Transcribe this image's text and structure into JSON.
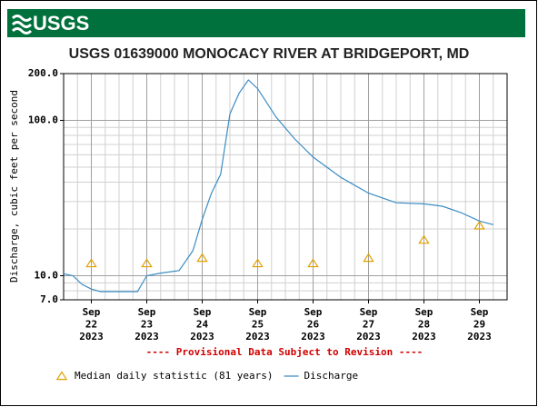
{
  "logo": "USGS",
  "chart_data": {
    "type": "line",
    "title": "USGS 01639000 MONOCACY RIVER AT BRIDGEPORT, MD",
    "y_label": "Discharge, cubic feet per second",
    "footnote": "---- Provisional Data Subject to Revision ----",
    "log_y": true,
    "grid": true,
    "xlim": [
      "2023-09-21T12:00",
      "2023-09-29T12:00"
    ],
    "xticks": [
      {
        "value": "2023-09-22T00:00",
        "label": "Sep 22 2023"
      },
      {
        "value": "2023-09-23T00:00",
        "label": "Sep 23 2023"
      },
      {
        "value": "2023-09-24T00:00",
        "label": "Sep 24 2023"
      },
      {
        "value": "2023-09-25T00:00",
        "label": "Sep 25 2023"
      },
      {
        "value": "2023-09-26T00:00",
        "label": "Sep 26 2023"
      },
      {
        "value": "2023-09-27T00:00",
        "label": "Sep 27 2023"
      },
      {
        "value": "2023-09-28T00:00",
        "label": "Sep 28 2023"
      },
      {
        "value": "2023-09-29T00:00",
        "label": "Sep 29 2023"
      }
    ],
    "ylim": [
      7,
      200
    ],
    "yticks": [
      {
        "value": 7,
        "label": "7.0"
      },
      {
        "value": 10,
        "label": "10.0"
      },
      {
        "value": 100,
        "label": "100.0"
      },
      {
        "value": 200,
        "label": "200.0"
      }
    ],
    "series": [
      {
        "name": "Median daily statistic (81 years)",
        "marker": "triangle",
        "color": "#e0a000",
        "x": [
          "2023-09-22T00:00",
          "2023-09-23T00:00",
          "2023-09-24T00:00",
          "2023-09-25T00:00",
          "2023-09-26T00:00",
          "2023-09-27T00:00",
          "2023-09-28T00:00",
          "2023-09-29T00:00"
        ],
        "values": [
          12,
          12,
          13,
          12,
          12,
          13,
          17,
          21
        ]
      },
      {
        "name": "Discharge",
        "marker": "line",
        "color": "#3a8cc4",
        "x": [
          "2023-09-21T12:00",
          "2023-09-21T16:00",
          "2023-09-21T20:00",
          "2023-09-22T00:00",
          "2023-09-22T04:00",
          "2023-09-22T12:00",
          "2023-09-22T20:00",
          "2023-09-23T00:00",
          "2023-09-23T06:00",
          "2023-09-23T14:00",
          "2023-09-23T20:00",
          "2023-09-24T00:00",
          "2023-09-24T04:00",
          "2023-09-24T08:00",
          "2023-09-24T12:00",
          "2023-09-24T16:00",
          "2023-09-24T20:00",
          "2023-09-25T00:00",
          "2023-09-25T08:00",
          "2023-09-25T16:00",
          "2023-09-26T00:00",
          "2023-09-26T12:00",
          "2023-09-27T00:00",
          "2023-09-27T12:00",
          "2023-09-28T00:00",
          "2023-09-28T08:00",
          "2023-09-28T16:00",
          "2023-09-29T00:00",
          "2023-09-29T06:00"
        ],
        "values": [
          10.3,
          10,
          8.8,
          8.2,
          7.9,
          7.9,
          7.9,
          10,
          10.4,
          10.8,
          14.5,
          23,
          34,
          45,
          110,
          150,
          182,
          160,
          105,
          76,
          58,
          43,
          34,
          29.5,
          29,
          28,
          25.5,
          22.5,
          21.3
        ]
      }
    ]
  }
}
